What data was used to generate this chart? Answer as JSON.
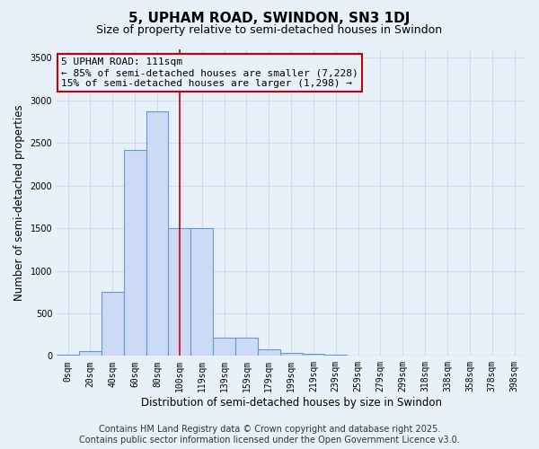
{
  "title": "5, UPHAM ROAD, SWINDON, SN3 1DJ",
  "subtitle": "Size of property relative to semi-detached houses in Swindon",
  "xlabel": "Distribution of semi-detached houses by size in Swindon",
  "ylabel": "Number of semi-detached properties",
  "categories": [
    "0sqm",
    "20sqm",
    "40sqm",
    "60sqm",
    "80sqm",
    "100sqm",
    "119sqm",
    "139sqm",
    "159sqm",
    "179sqm",
    "199sqm",
    "219sqm",
    "239sqm",
    "259sqm",
    "279sqm",
    "299sqm",
    "318sqm",
    "338sqm",
    "358sqm",
    "378sqm",
    "398sqm"
  ],
  "bar_values": [
    15,
    55,
    755,
    2420,
    2870,
    1500,
    1500,
    210,
    210,
    80,
    35,
    20,
    10,
    5,
    0,
    0,
    5,
    0,
    0,
    0,
    0
  ],
  "bar_color": "#ccdaf5",
  "bar_edge_color": "#6699cc",
  "vline_x": 5.5,
  "vline_color": "#cc0000",
  "annotation_line1": "5 UPHAM ROAD: 111sqm",
  "annotation_line2": "← 85% of semi-detached houses are smaller (7,228)",
  "annotation_line3": "15% of semi-detached houses are larger (1,298) →",
  "annotation_box_edgecolor": "#cc0000",
  "annotation_box_facecolor": "#e8f0fa",
  "ylim": [
    0,
    3600
  ],
  "yticks": [
    0,
    500,
    1000,
    1500,
    2000,
    2500,
    3000,
    3500
  ],
  "bg_color": "#e8f0fa",
  "grid_color": "#d0daea",
  "footer_line1": "Contains HM Land Registry data © Crown copyright and database right 2025.",
  "footer_line2": "Contains public sector information licensed under the Open Government Licence v3.0.",
  "title_fontsize": 11,
  "subtitle_fontsize": 9,
  "axis_label_fontsize": 8.5,
  "tick_fontsize": 7,
  "footer_fontsize": 7,
  "annotation_fontsize": 8
}
